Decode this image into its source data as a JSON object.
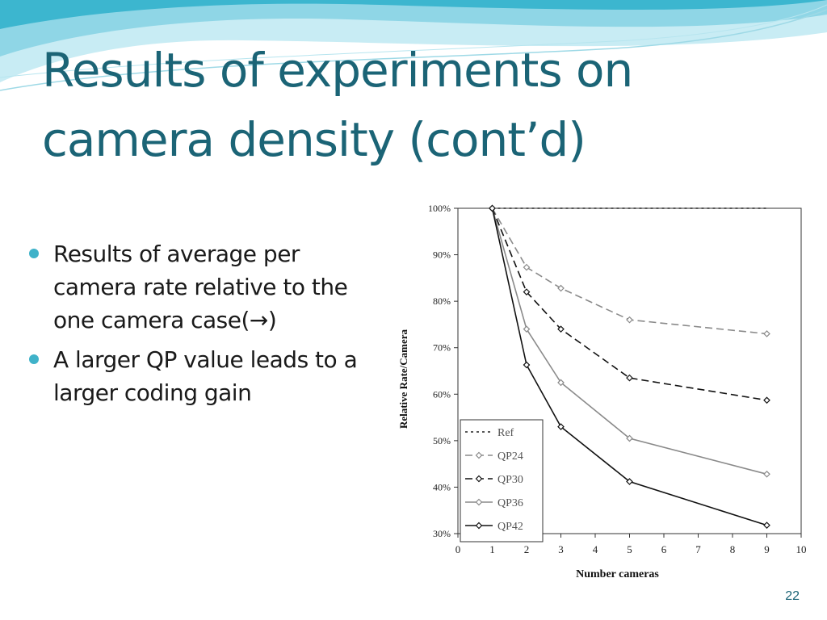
{
  "slide": {
    "title_line1": "Results of experiments on",
    "title_line2": "camera density (cont’d)",
    "bullets": [
      "Results of average per camera rate relative to the one camera case(→)",
      "A larger QP value leads to a larger coding gain"
    ],
    "slide_number": "22",
    "colors": {
      "title": "#1b6476",
      "bullet": "#3fb2c9",
      "wave_light": "#c8ecf4",
      "wave_dark": "#3cb6cf"
    }
  },
  "chart_data": {
    "type": "line",
    "title": "",
    "xlabel": "Number cameras",
    "ylabel": "Relative Rate/Camera",
    "xlim": [
      0,
      10
    ],
    "ylim": [
      30,
      100
    ],
    "x_ticks": [
      "0",
      "1",
      "2",
      "3",
      "4",
      "5",
      "6",
      "7",
      "8",
      "9",
      "10"
    ],
    "y_ticks": [
      "30%",
      "40%",
      "50%",
      "60%",
      "70%",
      "80%",
      "90%",
      "100%"
    ],
    "grid": false,
    "legend_position": "bottom-left",
    "series": [
      {
        "name": "Ref",
        "x": [
          1,
          9
        ],
        "values": [
          100,
          100
        ],
        "style": "dotted",
        "color": "#222222",
        "marker": "none"
      },
      {
        "name": "QP24",
        "x": [
          1,
          2,
          3,
          5,
          9
        ],
        "values": [
          100,
          87.3,
          82.8,
          76,
          73
        ],
        "style": "dashed",
        "color": "#8a8a8a",
        "marker": "diamond"
      },
      {
        "name": "QP30",
        "x": [
          1,
          2,
          3,
          5,
          9
        ],
        "values": [
          100,
          82,
          74,
          63.5,
          58.7
        ],
        "style": "dashed",
        "color": "#111111",
        "marker": "diamond"
      },
      {
        "name": "QP36",
        "x": [
          1,
          2,
          3,
          5,
          9
        ],
        "values": [
          100,
          74,
          62.5,
          50.5,
          42.8
        ],
        "style": "solid",
        "color": "#8a8a8a",
        "marker": "diamond"
      },
      {
        "name": "QP42",
        "x": [
          1,
          2,
          3,
          5,
          9
        ],
        "values": [
          100,
          66.3,
          53,
          41.2,
          31.8
        ],
        "style": "solid",
        "color": "#111111",
        "marker": "diamond"
      }
    ]
  }
}
